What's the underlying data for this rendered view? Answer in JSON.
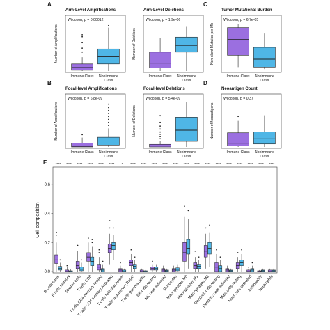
{
  "figure": {
    "panels": [
      {
        "letter": "A",
        "title": "Arm-Level Amplifications",
        "stat": "Wilcoxon, p = 0.00012"
      },
      {
        "letter": "",
        "title": "Arm-Level Deletions",
        "stat": "Wilcoxon, p = 1.9e-06"
      },
      {
        "letter": "C",
        "title": "Tumor Mutational Burden",
        "stat": "Wilcoxon, p = 6.7e-05"
      },
      {
        "letter": "B",
        "title": "Focal-level Amplifications",
        "stat": "Wilcoxon, p = 6.8e-09"
      },
      {
        "letter": "",
        "title": "Focal-level Deletions",
        "stat": "Wilcoxon, p = 5.4e-09"
      },
      {
        "letter": "D",
        "title": "Neoantigen Count",
        "stat": "Wilcoxon, p = 0.37"
      },
      {
        "letter": "E",
        "title": "",
        "stat": ""
      }
    ]
  },
  "colors": {
    "immune": "#9b6fe0",
    "nonimmune": "#4fb6e6",
    "outline": "#222222"
  },
  "chart_data": [
    {
      "type": "box",
      "title": "Arm-Level Amplifications",
      "annotation": "Wilcoxon, p = 0.00012",
      "ylabel": "Number of Amplifications",
      "categories": [
        "Immune Class",
        "Nonimmune Class"
      ],
      "ylim": [
        0,
        12
      ],
      "boxes": [
        {
          "group": "Immune Class",
          "whisker_low": 0,
          "q1": 0.2,
          "median": 0.9,
          "q3": 1.8,
          "whisker_high": 3.5,
          "outliers": [
            4.8,
            5.8,
            7.2,
            8.7,
            9.2
          ]
        },
        {
          "group": "Nonimmune Class",
          "whisker_low": 0,
          "q1": 1.8,
          "median": 3.6,
          "q3": 5.6,
          "whisker_high": 11.0,
          "outliers": [
            11.5
          ]
        }
      ]
    },
    {
      "type": "box",
      "title": "Arm-Level Deletions",
      "annotation": "Wilcoxon, p = 1.9e-06",
      "ylabel": "Number of Deletions",
      "categories": [
        "Immune Class",
        "Nonimmune Class"
      ],
      "ylim": [
        0,
        12
      ],
      "boxes": [
        {
          "group": "Immune Class",
          "whisker_low": 0,
          "q1": 0.8,
          "median": 2.0,
          "q3": 4.8,
          "whisker_high": 8.3,
          "outliers": []
        },
        {
          "group": "Nonimmune Class",
          "whisker_low": 0,
          "q1": 4.8,
          "median": 6.5,
          "q3": 8.6,
          "whisker_high": 11.2,
          "outliers": []
        }
      ]
    },
    {
      "type": "box",
      "title": "Tumor Mutational Burden",
      "annotation": "Wilcoxon, p = 6.7e-05",
      "ylabel": "Non-silent Mutation per Mb",
      "categories": [
        "Immune Class",
        "Nonimmune Class"
      ],
      "ylim": [
        0,
        12
      ],
      "boxes": [
        {
          "group": "Immune Class",
          "whisker_low": 1.0,
          "q1": 4.0,
          "median": 8.0,
          "q3": 11.0,
          "whisker_high": 12.0,
          "outliers": []
        },
        {
          "group": "Nonimmune Class",
          "whisker_low": 0.5,
          "q1": 1.0,
          "median": 3.0,
          "q3": 6.0,
          "whisker_high": 9.5,
          "outliers": []
        }
      ]
    },
    {
      "type": "box",
      "title": "Focal-level Amplifications",
      "annotation": "Wilcoxon, p = 6.8e-09",
      "ylabel": "Number of Amplifications",
      "categories": [
        "Immune Class",
        "Nonimmune Class"
      ],
      "ylim": [
        0,
        12
      ],
      "boxes": [
        {
          "group": "Immune Class",
          "whisker_low": 0,
          "q1": 0.0,
          "median": 0.2,
          "q3": 1.0,
          "whisker_high": 2.5,
          "outliers": [
            3.3
          ]
        },
        {
          "group": "Nonimmune Class",
          "whisker_low": 0,
          "q1": 0.5,
          "median": 1.6,
          "q3": 2.6,
          "whisker_high": 5.0,
          "outliers": [
            5.8,
            6.6,
            7.4,
            8.2,
            9.0,
            9.8,
            10.6,
            11.5
          ]
        }
      ]
    },
    {
      "type": "box",
      "title": "Focal-level Deletions",
      "annotation": "Wilcoxon, p = 5.4e-09",
      "ylabel": "Number of Deletions",
      "categories": [
        "Immune Class",
        "Nonimmune Class"
      ],
      "ylim": [
        0,
        12
      ],
      "boxes": [
        {
          "group": "Immune Class",
          "whisker_low": 0,
          "q1": 0.0,
          "median": 0.3,
          "q3": 0.7,
          "whisker_high": 1.5,
          "outliers": [
            2.2,
            2.8,
            3.4,
            4.0,
            4.8,
            5.6,
            6.6,
            8.4
          ]
        },
        {
          "group": "Nonimmune Class",
          "whisker_low": 0,
          "q1": 1.5,
          "median": 4.5,
          "q3": 8.0,
          "whisker_high": 12.0,
          "outliers": []
        }
      ]
    },
    {
      "type": "box",
      "title": "Neoantigen Count",
      "annotation": "Wilcoxon, p = 0.37",
      "ylabel": "Number of Neoantigens",
      "categories": [
        "Immune Class",
        "Nonimmune Class"
      ],
      "ylim": [
        0,
        12
      ],
      "boxes": [
        {
          "group": "Immune Class",
          "whisker_low": 0,
          "q1": 0.3,
          "median": 1.0,
          "q3": 3.8,
          "whisker_high": 7.0,
          "outliers": [
            8.2
          ]
        },
        {
          "group": "Nonimmune Class",
          "whisker_low": 0,
          "q1": 0.8,
          "median": 2.2,
          "q3": 4.0,
          "whisker_high": 8.5,
          "outliers": []
        }
      ]
    },
    {
      "type": "box",
      "ylabel": "Cell composition",
      "ylim": [
        0,
        0.7
      ],
      "yticks": [
        0.0,
        0.2,
        0.4,
        0.6
      ],
      "categories": [
        "B cells naive",
        "B cells memory",
        "Plasma cells",
        "T cells CD8",
        "T cells CD4 memory resting",
        "T cells CD4 memory Activated",
        "T cells follicular helper",
        "T cells regulatory (Tregs)",
        "T cells gamma delta",
        "NK cells resting",
        "NK cells activated",
        "Monocytes",
        "Macrophages M0",
        "Macrophages M1",
        "Macrophages M2",
        "Dendritic cells resting",
        "Dendritic cells activated",
        "Mast cells resting",
        "Mast cells activated",
        "Eosinophils",
        "Neutrophils"
      ],
      "significance": [
        "****",
        "****",
        "****",
        "****",
        "****",
        "****",
        "*",
        "****",
        "****",
        "****",
        "****",
        "****",
        "****",
        "****",
        "****",
        "****",
        "****",
        "****",
        "****",
        "****",
        "****"
      ],
      "series": [
        {
          "name": "Immune Class",
          "boxes": [
            {
              "whisker_low": 0.0,
              "q1": 0.055,
              "median": 0.08,
              "q3": 0.115,
              "whisker_high": 0.2,
              "outliers": [
                0.25,
                0.27
              ]
            },
            {
              "whisker_low": 0.0,
              "q1": 0.0,
              "median": 0.0,
              "q3": 0.01,
              "whisker_high": 0.03,
              "outliers": [
                0.04
              ]
            },
            {
              "whisker_low": 0.0,
              "q1": 0.02,
              "median": 0.04,
              "q3": 0.07,
              "whisker_high": 0.14,
              "outliers": [
                0.18
              ]
            },
            {
              "whisker_low": 0.0,
              "q1": 0.07,
              "median": 0.1,
              "q3": 0.13,
              "whisker_high": 0.2,
              "outliers": [
                0.23
              ]
            },
            {
              "whisker_low": 0.0,
              "q1": 0.01,
              "median": 0.03,
              "q3": 0.05,
              "whisker_high": 0.1,
              "outliers": [
                0.13,
                0.15
              ]
            },
            {
              "whisker_low": 0.05,
              "q1": 0.13,
              "median": 0.16,
              "q3": 0.19,
              "whisker_high": 0.26,
              "outliers": [
                0.3,
                0.35
              ]
            },
            {
              "whisker_low": 0.0,
              "q1": 0.0,
              "median": 0.01,
              "q3": 0.02,
              "whisker_high": 0.04,
              "outliers": [
                0.06
              ]
            },
            {
              "whisker_low": 0.0,
              "q1": 0.04,
              "median": 0.06,
              "q3": 0.08,
              "whisker_high": 0.12,
              "outliers": [
                0.15
              ]
            },
            {
              "whisker_low": 0.0,
              "q1": 0.0,
              "median": 0.0,
              "q3": 0.01,
              "whisker_high": 0.02,
              "outliers": []
            },
            {
              "whisker_low": 0.0,
              "q1": 0.01,
              "median": 0.02,
              "q3": 0.03,
              "whisker_high": 0.05,
              "outliers": [
                0.07
              ]
            },
            {
              "whisker_low": 0.0,
              "q1": 0.0,
              "median": 0.01,
              "q3": 0.02,
              "whisker_high": 0.04,
              "outliers": []
            },
            {
              "whisker_low": 0.0,
              "q1": 0.0,
              "median": 0.01,
              "q3": 0.02,
              "whisker_high": 0.04,
              "outliers": []
            },
            {
              "whisker_low": 0.0,
              "q1": 0.07,
              "median": 0.13,
              "q3": 0.2,
              "whisker_high": 0.38,
              "outliers": [
                0.45
              ]
            },
            {
              "whisker_low": 0.0,
              "q1": 0.02,
              "median": 0.04,
              "q3": 0.06,
              "whisker_high": 0.1,
              "outliers": [
                0.14
              ]
            },
            {
              "whisker_low": 0.02,
              "q1": 0.1,
              "median": 0.14,
              "q3": 0.18,
              "whisker_high": 0.26,
              "outliers": [
                0.3
              ]
            },
            {
              "whisker_low": 0.0,
              "q1": 0.0,
              "median": 0.03,
              "q3": 0.06,
              "whisker_high": 0.12,
              "outliers": [
                0.15
              ]
            },
            {
              "whisker_low": 0.0,
              "q1": 0.0,
              "median": 0.01,
              "q3": 0.02,
              "whisker_high": 0.04,
              "outliers": []
            },
            {
              "whisker_low": 0.0,
              "q1": 0.02,
              "median": 0.04,
              "q3": 0.06,
              "whisker_high": 0.1,
              "outliers": [
                0.13
              ]
            },
            {
              "whisker_low": 0.0,
              "q1": 0.0,
              "median": 0.0,
              "q3": 0.01,
              "whisker_high": 0.02,
              "outliers": [
                0.03
              ]
            },
            {
              "whisker_low": 0.0,
              "q1": 0.0,
              "median": 0.0,
              "q3": 0.005,
              "whisker_high": 0.01,
              "outliers": []
            },
            {
              "whisker_low": 0.0,
              "q1": 0.0,
              "median": 0.0,
              "q3": 0.01,
              "whisker_high": 0.02,
              "outliers": []
            }
          ]
        },
        {
          "name": "Nonimmune Class",
          "boxes": [
            {
              "whisker_low": 0.0,
              "q1": 0.01,
              "median": 0.02,
              "q3": 0.035,
              "whisker_high": 0.06,
              "outliers": [
                0.08
              ]
            },
            {
              "whisker_low": 0.0,
              "q1": 0.0,
              "median": 0.0,
              "q3": 0.005,
              "whisker_high": 0.015,
              "outliers": []
            },
            {
              "whisker_low": 0.0,
              "q1": 0.005,
              "median": 0.015,
              "q3": 0.03,
              "whisker_high": 0.06,
              "outliers": [
                0.08
              ]
            },
            {
              "whisker_low": 0.0,
              "q1": 0.04,
              "median": 0.07,
              "q3": 0.1,
              "whisker_high": 0.17,
              "outliers": [
                0.2,
                0.22
              ]
            },
            {
              "whisker_low": 0.0,
              "q1": 0.0,
              "median": 0.01,
              "q3": 0.02,
              "whisker_high": 0.05,
              "outliers": [
                0.07
              ]
            },
            {
              "whisker_low": 0.08,
              "q1": 0.15,
              "median": 0.18,
              "q3": 0.2,
              "whisker_high": 0.25,
              "outliers": [
                0.3
              ]
            },
            {
              "whisker_low": 0.0,
              "q1": 0.0,
              "median": 0.0,
              "q3": 0.01,
              "whisker_high": 0.02,
              "outliers": []
            },
            {
              "whisker_low": 0.0,
              "q1": 0.02,
              "median": 0.035,
              "q3": 0.05,
              "whisker_high": 0.08,
              "outliers": [
                0.1
              ]
            },
            {
              "whisker_low": 0.0,
              "q1": 0.0,
              "median": 0.0,
              "q3": 0.005,
              "whisker_high": 0.01,
              "outliers": []
            },
            {
              "whisker_low": 0.0,
              "q1": 0.01,
              "median": 0.02,
              "q3": 0.03,
              "whisker_high": 0.05,
              "outliers": []
            },
            {
              "whisker_low": 0.0,
              "q1": 0.0,
              "median": 0.005,
              "q3": 0.01,
              "whisker_high": 0.02,
              "outliers": []
            },
            {
              "whisker_low": 0.0,
              "q1": 0.005,
              "median": 0.015,
              "q3": 0.025,
              "whisker_high": 0.05,
              "outliers": []
            },
            {
              "whisker_low": 0.02,
              "q1": 0.12,
              "median": 0.16,
              "q3": 0.22,
              "whisker_high": 0.36,
              "outliers": [
                0.42
              ]
            },
            {
              "whisker_low": 0.0,
              "q1": 0.02,
              "median": 0.035,
              "q3": 0.05,
              "whisker_high": 0.08,
              "outliers": [
                0.1
              ]
            },
            {
              "whisker_low": 0.03,
              "q1": 0.12,
              "median": 0.16,
              "q3": 0.2,
              "whisker_high": 0.27,
              "outliers": [
                0.32
              ]
            },
            {
              "whisker_low": 0.0,
              "q1": 0.0,
              "median": 0.02,
              "q3": 0.04,
              "whisker_high": 0.08,
              "outliers": [
                0.1
              ]
            },
            {
              "whisker_low": 0.0,
              "q1": 0.0,
              "median": 0.005,
              "q3": 0.01,
              "whisker_high": 0.02,
              "outliers": []
            },
            {
              "whisker_low": 0.0,
              "q1": 0.04,
              "median": 0.06,
              "q3": 0.08,
              "whisker_high": 0.12,
              "outliers": [
                0.15
              ]
            },
            {
              "whisker_low": 0.0,
              "q1": 0.0,
              "median": 0.01,
              "q3": 0.02,
              "whisker_high": 0.04,
              "outliers": [
                0.06
              ]
            },
            {
              "whisker_low": 0.0,
              "q1": 0.0,
              "median": 0.005,
              "q3": 0.01,
              "whisker_high": 0.02,
              "outliers": []
            },
            {
              "whisker_low": 0.0,
              "q1": 0.0,
              "median": 0.005,
              "q3": 0.01,
              "whisker_high": 0.02,
              "outliers": []
            }
          ]
        }
      ]
    }
  ]
}
